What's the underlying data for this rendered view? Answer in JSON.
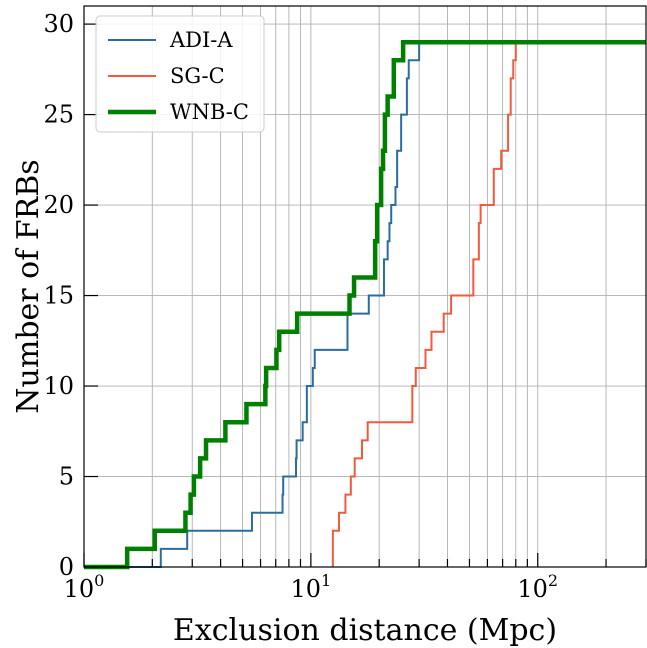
{
  "chart_data": {
    "type": "line",
    "xlabel": "Exclusion distance (Mpc)",
    "ylabel": "Number of FRBs",
    "xscale": "log",
    "xlim": [
      1,
      300
    ],
    "ylim": [
      0,
      31
    ],
    "grid": true,
    "legend_placement": "top-left",
    "x_tick_labels": [
      {
        "value": 1,
        "base": "10",
        "exp": "0"
      },
      {
        "value": 10,
        "base": "10",
        "exp": "1"
      },
      {
        "value": 100,
        "base": "10",
        "exp": "2"
      }
    ],
    "y_ticks": [
      0,
      5,
      10,
      15,
      20,
      25,
      30
    ],
    "y_tick_labels": [
      "0",
      "5",
      "10",
      "15",
      "20",
      "25",
      "30"
    ],
    "series": [
      {
        "name": "ADI-A",
        "color": "#2a6d9e",
        "width": 2,
        "steps": [
          [
            1.0,
            0
          ],
          [
            2.18,
            0
          ],
          [
            2.18,
            1
          ],
          [
            2.85,
            1
          ],
          [
            2.85,
            2
          ],
          [
            5.5,
            2
          ],
          [
            5.5,
            3
          ],
          [
            7.5,
            3
          ],
          [
            7.5,
            4
          ],
          [
            7.55,
            4
          ],
          [
            7.55,
            5
          ],
          [
            8.6,
            5
          ],
          [
            8.6,
            6
          ],
          [
            8.65,
            6
          ],
          [
            8.65,
            7
          ],
          [
            9.2,
            7
          ],
          [
            9.2,
            8
          ],
          [
            9.6,
            8
          ],
          [
            9.6,
            10
          ],
          [
            10.2,
            10
          ],
          [
            10.2,
            11
          ],
          [
            10.4,
            11
          ],
          [
            10.4,
            12
          ],
          [
            14.5,
            12
          ],
          [
            14.5,
            14
          ],
          [
            18.0,
            14
          ],
          [
            18.0,
            15
          ],
          [
            21.0,
            15
          ],
          [
            21.0,
            17
          ],
          [
            21.8,
            17
          ],
          [
            21.8,
            18
          ],
          [
            22.2,
            18
          ],
          [
            22.2,
            19
          ],
          [
            22.6,
            19
          ],
          [
            22.6,
            20
          ],
          [
            23.6,
            20
          ],
          [
            23.6,
            21
          ],
          [
            24.0,
            21
          ],
          [
            24.0,
            23
          ],
          [
            25.0,
            23
          ],
          [
            25.0,
            25
          ],
          [
            26.5,
            25
          ],
          [
            26.5,
            27
          ],
          [
            27.0,
            27
          ],
          [
            27.0,
            28
          ],
          [
            30.0,
            28
          ],
          [
            30.0,
            29
          ],
          [
            300,
            29
          ]
        ]
      },
      {
        "name": "SG-C",
        "color": "#f15a3d",
        "width": 2,
        "steps": [
          [
            12.5,
            0
          ],
          [
            12.5,
            2
          ],
          [
            13.3,
            2
          ],
          [
            13.3,
            3
          ],
          [
            14.2,
            3
          ],
          [
            14.2,
            4
          ],
          [
            15.0,
            4
          ],
          [
            15.0,
            5
          ],
          [
            15.6,
            5
          ],
          [
            15.6,
            6
          ],
          [
            16.8,
            6
          ],
          [
            16.8,
            7
          ],
          [
            17.8,
            7
          ],
          [
            17.8,
            8
          ],
          [
            28.0,
            8
          ],
          [
            28.0,
            10
          ],
          [
            29.0,
            10
          ],
          [
            29.0,
            11
          ],
          [
            32.0,
            11
          ],
          [
            32.0,
            12
          ],
          [
            34.0,
            12
          ],
          [
            34.0,
            13
          ],
          [
            38.5,
            13
          ],
          [
            38.5,
            14
          ],
          [
            41.5,
            14
          ],
          [
            41.5,
            15
          ],
          [
            52.0,
            15
          ],
          [
            52.0,
            17
          ],
          [
            55.0,
            17
          ],
          [
            55.0,
            19
          ],
          [
            56.0,
            19
          ],
          [
            56.0,
            20
          ],
          [
            64.0,
            20
          ],
          [
            64.0,
            22
          ],
          [
            69.0,
            22
          ],
          [
            69.0,
            23
          ],
          [
            74.0,
            23
          ],
          [
            74.0,
            25
          ],
          [
            76.0,
            25
          ],
          [
            76.0,
            27
          ],
          [
            78.0,
            27
          ],
          [
            78.0,
            28
          ],
          [
            80.0,
            28
          ],
          [
            80.0,
            29
          ]
        ]
      },
      {
        "name": "WNB-C",
        "color": "#008000",
        "width": 4.5,
        "steps": [
          [
            1.0,
            0
          ],
          [
            1.55,
            0
          ],
          [
            1.55,
            1
          ],
          [
            2.05,
            1
          ],
          [
            2.05,
            2
          ],
          [
            2.8,
            2
          ],
          [
            2.8,
            3
          ],
          [
            2.95,
            3
          ],
          [
            2.95,
            4
          ],
          [
            3.05,
            4
          ],
          [
            3.05,
            5
          ],
          [
            3.25,
            5
          ],
          [
            3.25,
            6
          ],
          [
            3.45,
            6
          ],
          [
            3.45,
            7
          ],
          [
            4.2,
            7
          ],
          [
            4.2,
            8
          ],
          [
            5.2,
            8
          ],
          [
            5.2,
            9
          ],
          [
            6.3,
            9
          ],
          [
            6.3,
            10
          ],
          [
            6.35,
            10
          ],
          [
            6.35,
            11
          ],
          [
            7.05,
            11
          ],
          [
            7.05,
            12
          ],
          [
            7.25,
            12
          ],
          [
            7.25,
            13
          ],
          [
            8.7,
            13
          ],
          [
            8.7,
            14
          ],
          [
            14.8,
            14
          ],
          [
            14.8,
            15
          ],
          [
            15.5,
            15
          ],
          [
            15.5,
            16
          ],
          [
            19.2,
            16
          ],
          [
            19.2,
            18
          ],
          [
            19.6,
            18
          ],
          [
            19.6,
            20
          ],
          [
            20.4,
            20
          ],
          [
            20.4,
            22
          ],
          [
            20.8,
            22
          ],
          [
            20.8,
            23
          ],
          [
            21.2,
            23
          ],
          [
            21.2,
            25
          ],
          [
            21.8,
            25
          ],
          [
            21.8,
            26
          ],
          [
            23.2,
            26
          ],
          [
            23.2,
            28
          ],
          [
            25.5,
            28
          ],
          [
            25.5,
            29
          ],
          [
            300,
            29
          ]
        ]
      }
    ]
  }
}
